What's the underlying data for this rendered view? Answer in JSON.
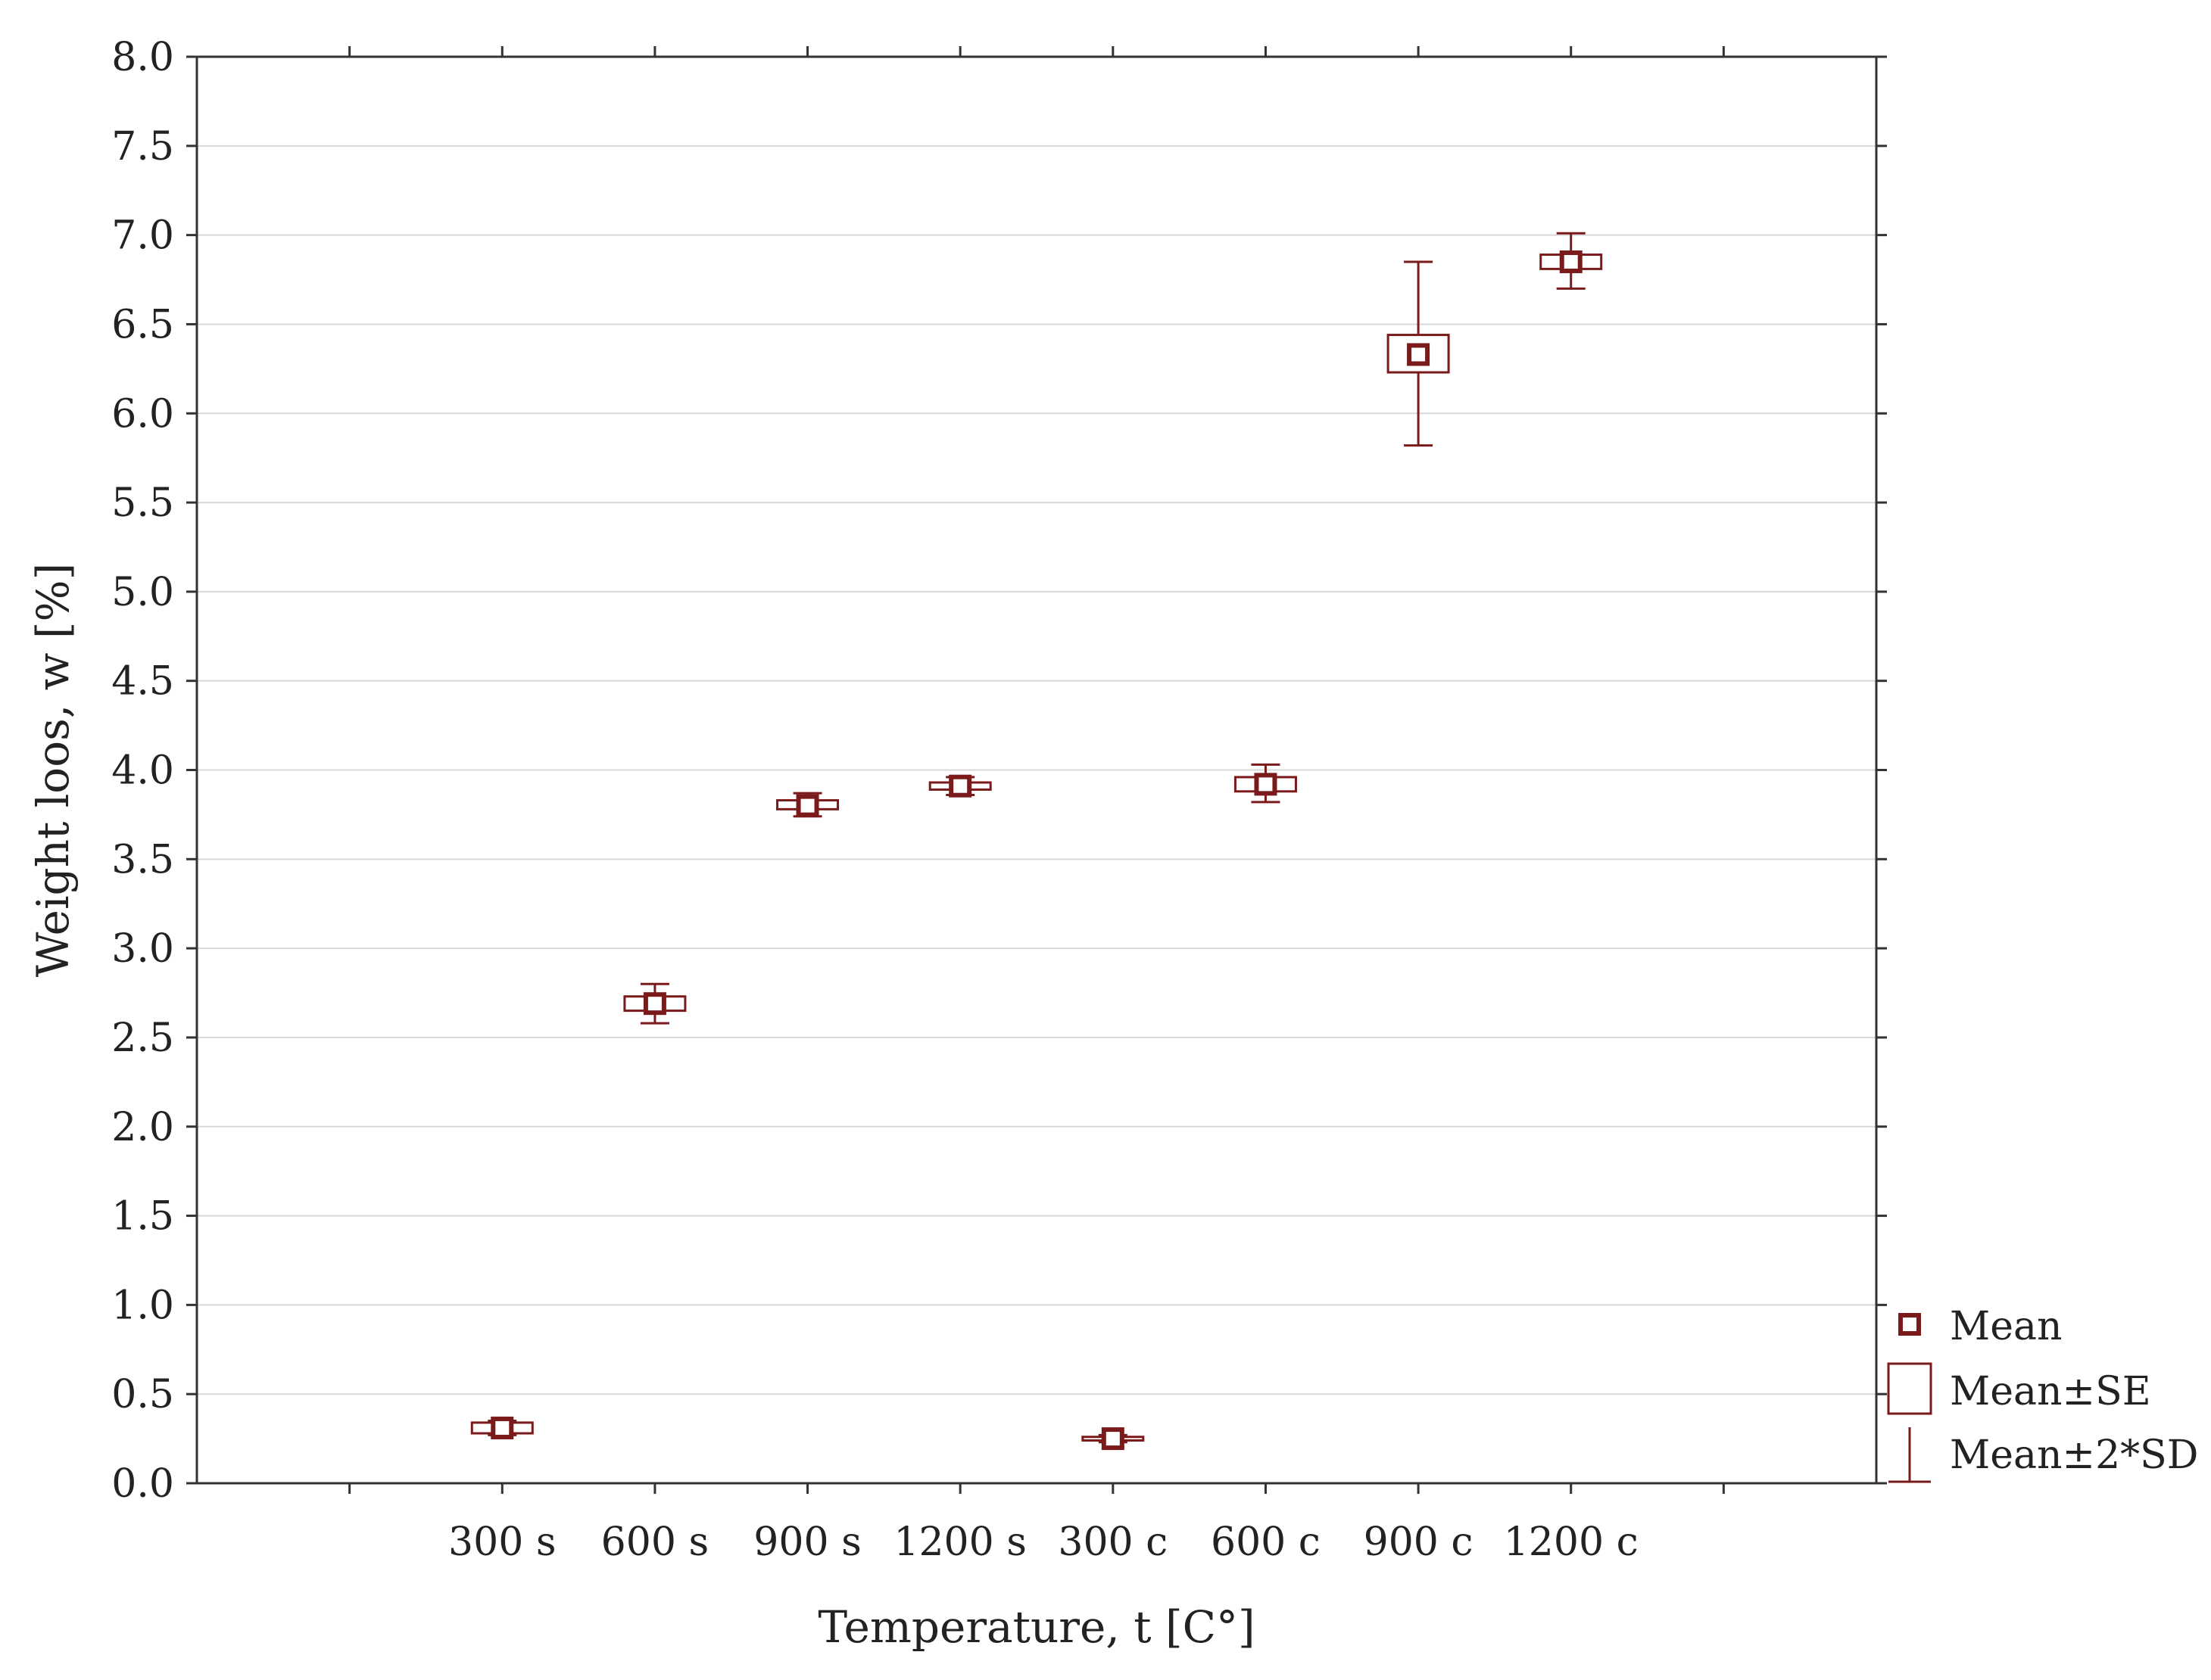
{
  "chart_data": {
    "type": "box",
    "title": "",
    "xlabel": "Temperature, t [C°]",
    "ylabel": "Weight loos, w [%]",
    "ylim": [
      0,
      8
    ],
    "yticks": [
      "0.0",
      "0.5",
      "1.0",
      "1.5",
      "2.0",
      "2.5",
      "3.0",
      "3.5",
      "4.0",
      "4.5",
      "5.0",
      "5.5",
      "6.0",
      "6.5",
      "7.0",
      "7.5",
      "8.0"
    ],
    "grid": true,
    "legend_position": "right-bottom",
    "categories": [
      "300 s",
      "600 s",
      "900 s",
      "1200 s",
      "300 c",
      "600 c",
      "900 c",
      "1200 c"
    ],
    "series": [
      {
        "values": [
          {
            "mean": 0.31,
            "se_low": 0.28,
            "se_high": 0.34,
            "sd2_low": 0.27,
            "sd2_high": 0.35
          },
          {
            "mean": 2.69,
            "se_low": 2.65,
            "se_high": 2.73,
            "sd2_low": 2.58,
            "sd2_high": 2.8
          },
          {
            "mean": 3.8,
            "se_low": 3.78,
            "se_high": 3.83,
            "sd2_low": 3.74,
            "sd2_high": 3.87
          },
          {
            "mean": 3.91,
            "se_low": 3.89,
            "se_high": 3.93,
            "sd2_low": 3.86,
            "sd2_high": 3.96
          },
          {
            "mean": 0.25,
            "se_low": 0.24,
            "se_high": 0.26,
            "sd2_low": 0.23,
            "sd2_high": 0.27
          },
          {
            "mean": 3.92,
            "se_low": 3.88,
            "se_high": 3.96,
            "sd2_low": 3.82,
            "sd2_high": 4.03
          },
          {
            "mean": 6.33,
            "se_low": 6.23,
            "se_high": 6.44,
            "sd2_low": 5.82,
            "sd2_high": 6.85
          },
          {
            "mean": 6.85,
            "se_low": 6.81,
            "se_high": 6.89,
            "sd2_low": 6.7,
            "sd2_high": 7.01
          }
        ]
      }
    ],
    "legend": [
      {
        "key": "mean",
        "label": "Mean"
      },
      {
        "key": "se",
        "label": "Mean±SE"
      },
      {
        "key": "sd",
        "label": "Mean±2*SD"
      }
    ],
    "colors": {
      "marker": "#7a1a1a",
      "grid": "#d8d8d8",
      "axis": "#333333"
    }
  }
}
